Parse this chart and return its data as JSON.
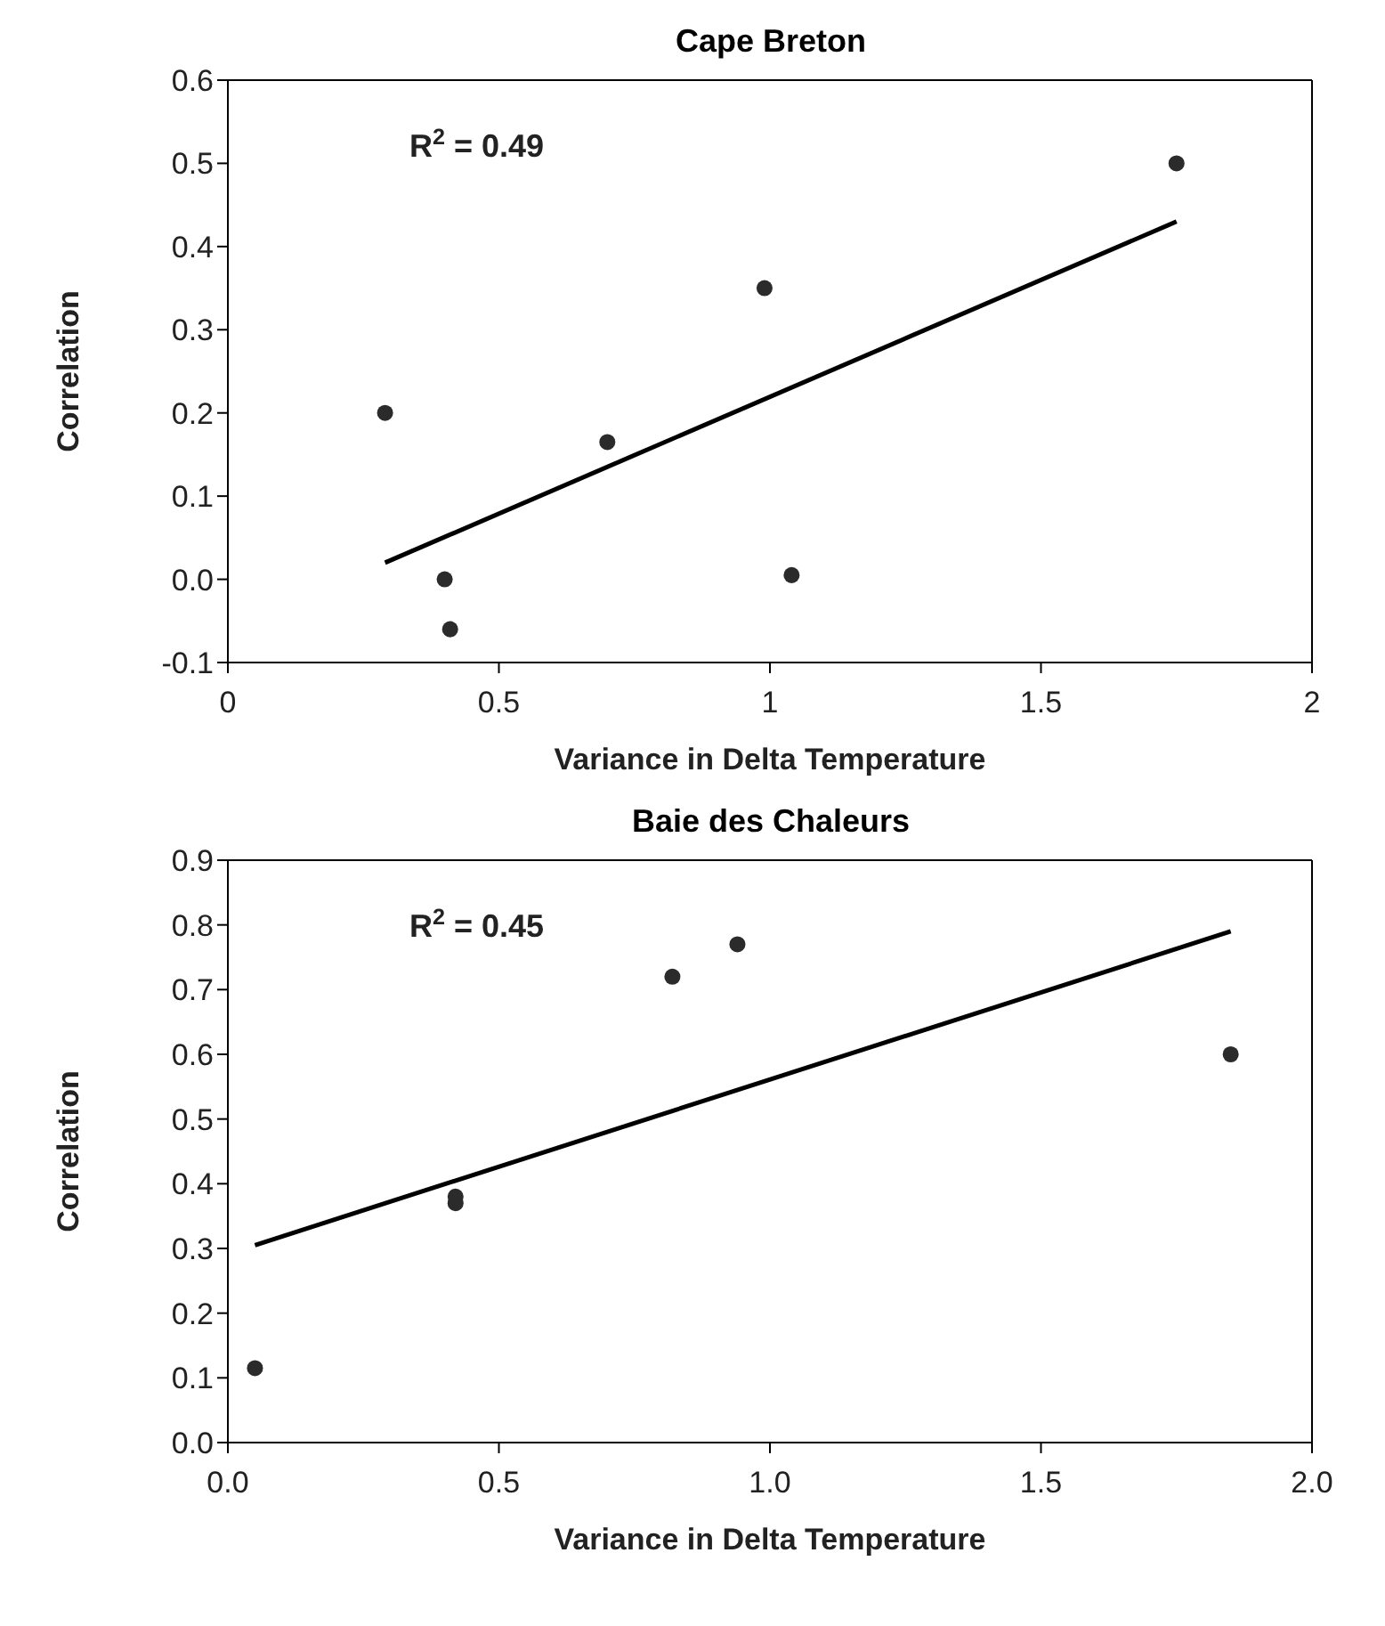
{
  "chart_data": [
    {
      "type": "scatter",
      "title": "Cape Breton",
      "xlabel": "Variance in Delta Temperature",
      "ylabel": "Correlation",
      "annotations": [
        "R$^{2}$ = 0.49"
      ],
      "xlim": [
        0,
        2
      ],
      "xticks": [
        0,
        0.5,
        1,
        1.5,
        2
      ],
      "ylim": [
        -0.1,
        0.6
      ],
      "yticks": [
        -0.1,
        {
          "value": 0,
          "label": "0.0"
        },
        0.1,
        0.2,
        0.3,
        0.4,
        0.5,
        0.6
      ],
      "grid": false,
      "marker": "circle",
      "series": [
        {
          "color": "#2b2b2b",
          "x": [
            0.29,
            0.4,
            0.41,
            0.7,
            0.99,
            1.04,
            1.75
          ],
          "values": [
            0.2,
            0,
            -0.06,
            0.165,
            0.35,
            0.005,
            0.5
          ]
        },
        {
          "type": "line",
          "color": "#000000",
          "marker": "none",
          "line_style": "solid",
          "x": [
            0.29,
            1.75
          ],
          "values": [
            0.02,
            0.43
          ]
        }
      ]
    },
    {
      "type": "scatter",
      "title": "Baie des Chaleurs",
      "xlabel": "Variance in Delta Temperature",
      "ylabel": "Correlation",
      "annotations": [
        "R$^{2}$ = 0.45"
      ],
      "xlim": [
        0,
        2
      ],
      "xticks": [
        {
          "value": 0,
          "label": "0.0"
        },
        0.5,
        {
          "value": 1,
          "label": "1.0"
        },
        1.5,
        {
          "value": 2,
          "label": "2.0"
        }
      ],
      "ylim": [
        0,
        0.9
      ],
      "yticks": [
        {
          "value": 0,
          "label": "0.0"
        },
        0.1,
        0.2,
        0.3,
        0.4,
        0.5,
        0.6,
        0.7,
        0.8,
        0.9
      ],
      "grid": false,
      "marker": "circle",
      "series": [
        {
          "color": "#2b2b2b",
          "x": [
            0.05,
            0.42,
            0.42,
            0.82,
            0.94,
            1.85
          ],
          "values": [
            0.115,
            0.37,
            0.38,
            0.72,
            0.77,
            0.6
          ]
        },
        {
          "type": "line",
          "color": "#000000",
          "marker": "none",
          "line_style": "solid",
          "x": [
            0.05,
            1.85
          ],
          "values": [
            0.305,
            0.79
          ]
        }
      ]
    }
  ]
}
